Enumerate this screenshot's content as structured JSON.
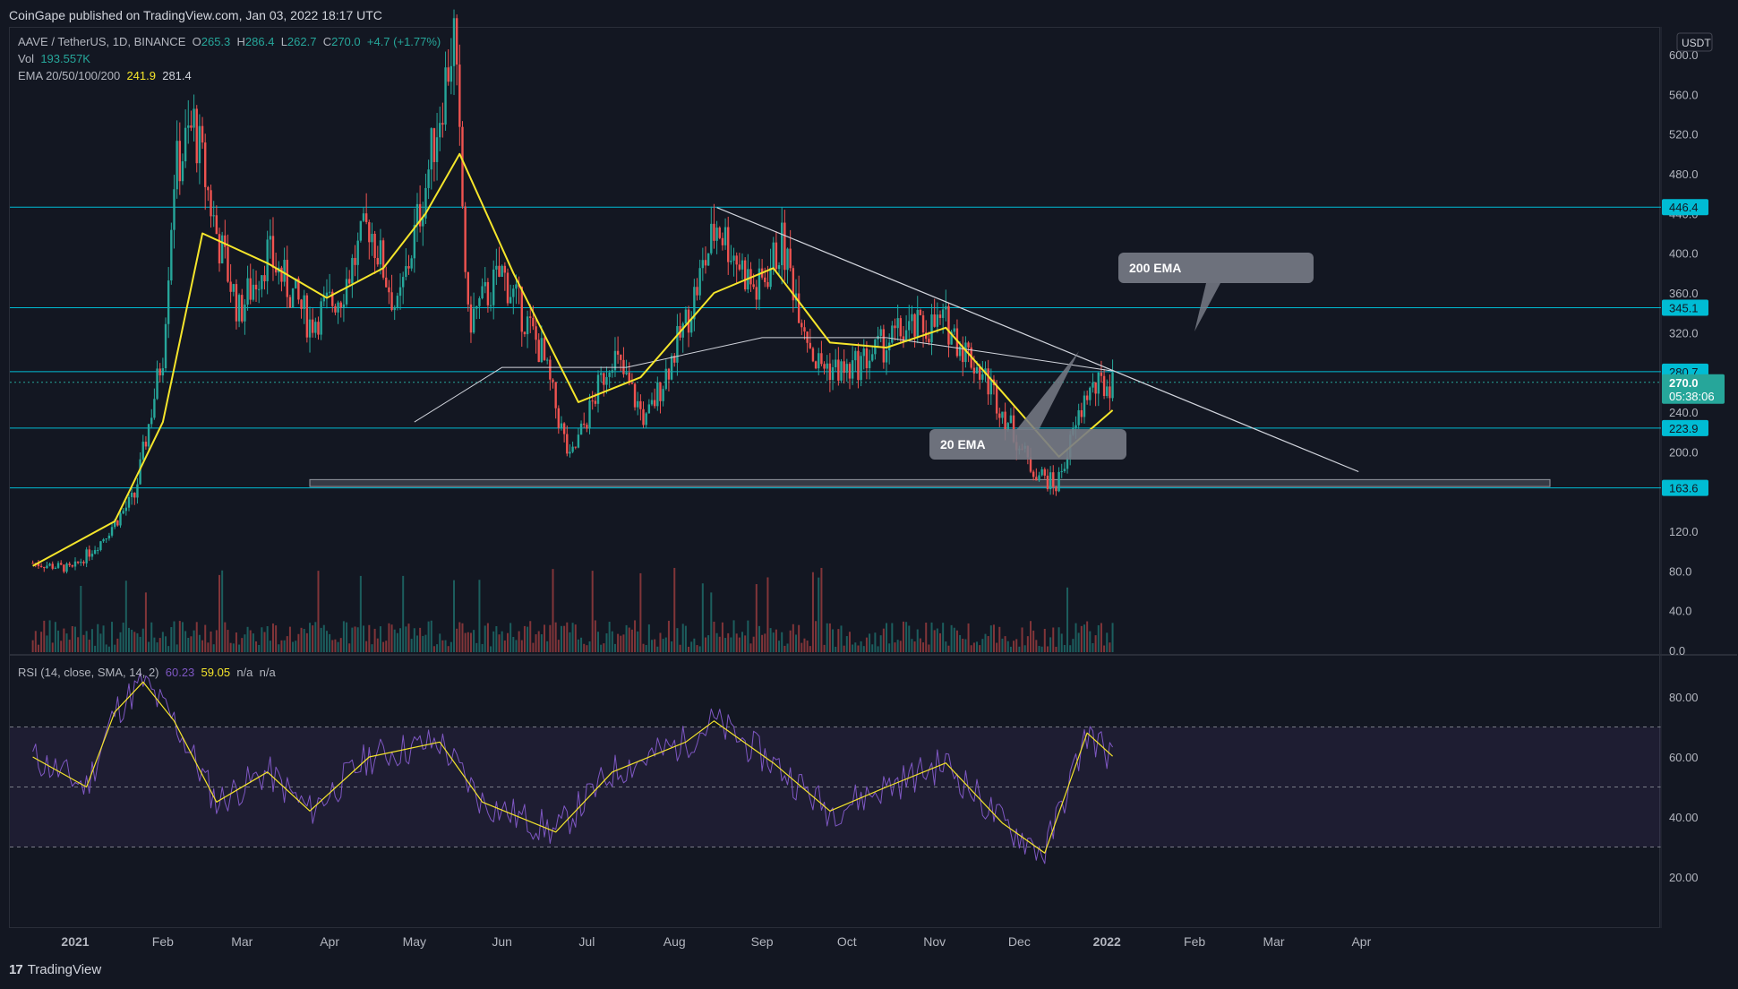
{
  "header": {
    "publisher": "CoinGape published on TradingView.com, Jan 03, 2022 18:17 UTC"
  },
  "legend": {
    "symbol": "AAVE / TetherUS, 1D, BINANCE",
    "o_label": "O",
    "o": "265.3",
    "h_label": "H",
    "h": "286.4",
    "l_label": "L",
    "l": "262.7",
    "c_label": "C",
    "c": "270.0",
    "change": "+4.7 (+1.77%)",
    "vol_label": "Vol",
    "vol": "193.557K",
    "ema_label": "EMA 20/50/100/200",
    "ema20": "241.9",
    "ema200": "281.4",
    "rsi_label": "RSI (14, close, SMA, 14, 2)",
    "rsi": "60.23",
    "rsi_sma": "59.05",
    "na1": "n/a",
    "na2": "n/a"
  },
  "currency_badge": "USDT",
  "price_labels": {
    "level_446": "446.4",
    "level_345": "345.1",
    "level_280": "280.7",
    "last": "270.0",
    "countdown": "05:38:06",
    "level_223": "223.9",
    "level_163": "163.6"
  },
  "annotations": {
    "ema200": "200 EMA",
    "ema20": "20 EMA"
  },
  "footer": {
    "brand": "TradingView"
  },
  "colors": {
    "background": "#131722",
    "up": "#26a69a",
    "down": "#ef5350",
    "ema20": "#f5e52b",
    "ema200": "#d1d4dc",
    "rsi": "#7e57c2",
    "level": "#00bcd4"
  },
  "chart_data": {
    "type": "candlestick",
    "x_ticks": [
      "2021",
      "Feb",
      "Mar",
      "Apr",
      "May",
      "Jun",
      "Jul",
      "Aug",
      "Sep",
      "Oct",
      "Nov",
      "Dec",
      "2022",
      "Feb",
      "Mar",
      "Apr"
    ],
    "price_axis": {
      "ticks": [
        0.0,
        40.0,
        80.0,
        120.0,
        160.0,
        200.0,
        240.0,
        280.0,
        320.0,
        360.0,
        400.0,
        440.0,
        480.0,
        520.0,
        560.0,
        600.0
      ],
      "ylim": [
        -10,
        620
      ]
    },
    "rsi_axis": {
      "ticks": [
        20.0,
        40.0,
        60.0,
        80.0
      ],
      "band": [
        30,
        70
      ],
      "mid": 50
    },
    "horizontal_levels": [
      446.4,
      345.1,
      280.7,
      223.9,
      163.6
    ],
    "support_zone": [
      165,
      172
    ],
    "descending_trendline": [
      {
        "date": "2021-08-16",
        "price": 446
      },
      {
        "date": "2022-03-31",
        "price": 180
      }
    ],
    "price_path": [
      {
        "date": "2020-12-17",
        "price": 88
      },
      {
        "date": "2020-12-31",
        "price": 82
      },
      {
        "date": "2021-01-10",
        "price": 110
      },
      {
        "date": "2021-01-22",
        "price": 155
      },
      {
        "date": "2021-02-01",
        "price": 300
      },
      {
        "date": "2021-02-05",
        "price": 480
      },
      {
        "date": "2021-02-12",
        "price": 530
      },
      {
        "date": "2021-02-20",
        "price": 420
      },
      {
        "date": "2021-02-28",
        "price": 340
      },
      {
        "date": "2021-03-10",
        "price": 400
      },
      {
        "date": "2021-03-25",
        "price": 330
      },
      {
        "date": "2021-04-05",
        "price": 360
      },
      {
        "date": "2021-04-15",
        "price": 430
      },
      {
        "date": "2021-04-25",
        "price": 340
      },
      {
        "date": "2021-05-05",
        "price": 470
      },
      {
        "date": "2021-05-15",
        "price": 620
      },
      {
        "date": "2021-05-20",
        "price": 330
      },
      {
        "date": "2021-06-01",
        "price": 380
      },
      {
        "date": "2021-06-15",
        "price": 300
      },
      {
        "date": "2021-06-25",
        "price": 190
      },
      {
        "date": "2021-07-10",
        "price": 300
      },
      {
        "date": "2021-07-22",
        "price": 230
      },
      {
        "date": "2021-08-05",
        "price": 330
      },
      {
        "date": "2021-08-16",
        "price": 430
      },
      {
        "date": "2021-08-30",
        "price": 360
      },
      {
        "date": "2021-09-08",
        "price": 410
      },
      {
        "date": "2021-09-20",
        "price": 290
      },
      {
        "date": "2021-10-01",
        "price": 280
      },
      {
        "date": "2021-10-20",
        "price": 320
      },
      {
        "date": "2021-11-05",
        "price": 330
      },
      {
        "date": "2021-11-20",
        "price": 270
      },
      {
        "date": "2021-12-05",
        "price": 185
      },
      {
        "date": "2021-12-14",
        "price": 165
      },
      {
        "date": "2021-12-25",
        "price": 260
      },
      {
        "date": "2022-01-03",
        "price": 270
      }
    ],
    "ema20_path": [
      {
        "date": "2020-12-17",
        "price": 85
      },
      {
        "date": "2021-01-15",
        "price": 130
      },
      {
        "date": "2021-02-01",
        "price": 230
      },
      {
        "date": "2021-02-15",
        "price": 420
      },
      {
        "date": "2021-03-10",
        "price": 390
      },
      {
        "date": "2021-03-31",
        "price": 355
      },
      {
        "date": "2021-04-20",
        "price": 385
      },
      {
        "date": "2021-05-05",
        "price": 440
      },
      {
        "date": "2021-05-17",
        "price": 500
      },
      {
        "date": "2021-06-05",
        "price": 380
      },
      {
        "date": "2021-06-28",
        "price": 250
      },
      {
        "date": "2021-07-20",
        "price": 275
      },
      {
        "date": "2021-08-15",
        "price": 360
      },
      {
        "date": "2021-09-05",
        "price": 385
      },
      {
        "date": "2021-09-25",
        "price": 310
      },
      {
        "date": "2021-10-15",
        "price": 305
      },
      {
        "date": "2021-11-05",
        "price": 325
      },
      {
        "date": "2021-11-25",
        "price": 260
      },
      {
        "date": "2021-12-15",
        "price": 195
      },
      {
        "date": "2022-01-03",
        "price": 241.9
      }
    ],
    "ema200_path": [
      {
        "date": "2021-05-01",
        "price": 230
      },
      {
        "date": "2021-06-01",
        "price": 285
      },
      {
        "date": "2021-07-15",
        "price": 285
      },
      {
        "date": "2021-09-01",
        "price": 315
      },
      {
        "date": "2021-10-15",
        "price": 315
      },
      {
        "date": "2021-11-20",
        "price": 300
      },
      {
        "date": "2022-01-03",
        "price": 281.4
      }
    ],
    "rsi_path": [
      {
        "date": "2020-12-17",
        "rsi": 60
      },
      {
        "date": "2021-01-05",
        "rsi": 50
      },
      {
        "date": "2021-01-15",
        "rsi": 75
      },
      {
        "date": "2021-01-25",
        "rsi": 85
      },
      {
        "date": "2021-02-05",
        "rsi": 72
      },
      {
        "date": "2021-02-20",
        "rsi": 45
      },
      {
        "date": "2021-03-10",
        "rsi": 55
      },
      {
        "date": "2021-03-25",
        "rsi": 42
      },
      {
        "date": "2021-04-15",
        "rsi": 60
      },
      {
        "date": "2021-05-10",
        "rsi": 65
      },
      {
        "date": "2021-05-25",
        "rsi": 45
      },
      {
        "date": "2021-06-20",
        "rsi": 35
      },
      {
        "date": "2021-07-10",
        "rsi": 55
      },
      {
        "date": "2021-08-05",
        "rsi": 65
      },
      {
        "date": "2021-08-15",
        "rsi": 72
      },
      {
        "date": "2021-09-05",
        "rsi": 58
      },
      {
        "date": "2021-09-25",
        "rsi": 42
      },
      {
        "date": "2021-10-15",
        "rsi": 50
      },
      {
        "date": "2021-11-05",
        "rsi": 58
      },
      {
        "date": "2021-11-25",
        "rsi": 38
      },
      {
        "date": "2021-12-10",
        "rsi": 28
      },
      {
        "date": "2021-12-25",
        "rsi": 68
      },
      {
        "date": "2022-01-03",
        "rsi": 60.23
      }
    ],
    "volume_axis": {
      "unit": "K"
    }
  }
}
